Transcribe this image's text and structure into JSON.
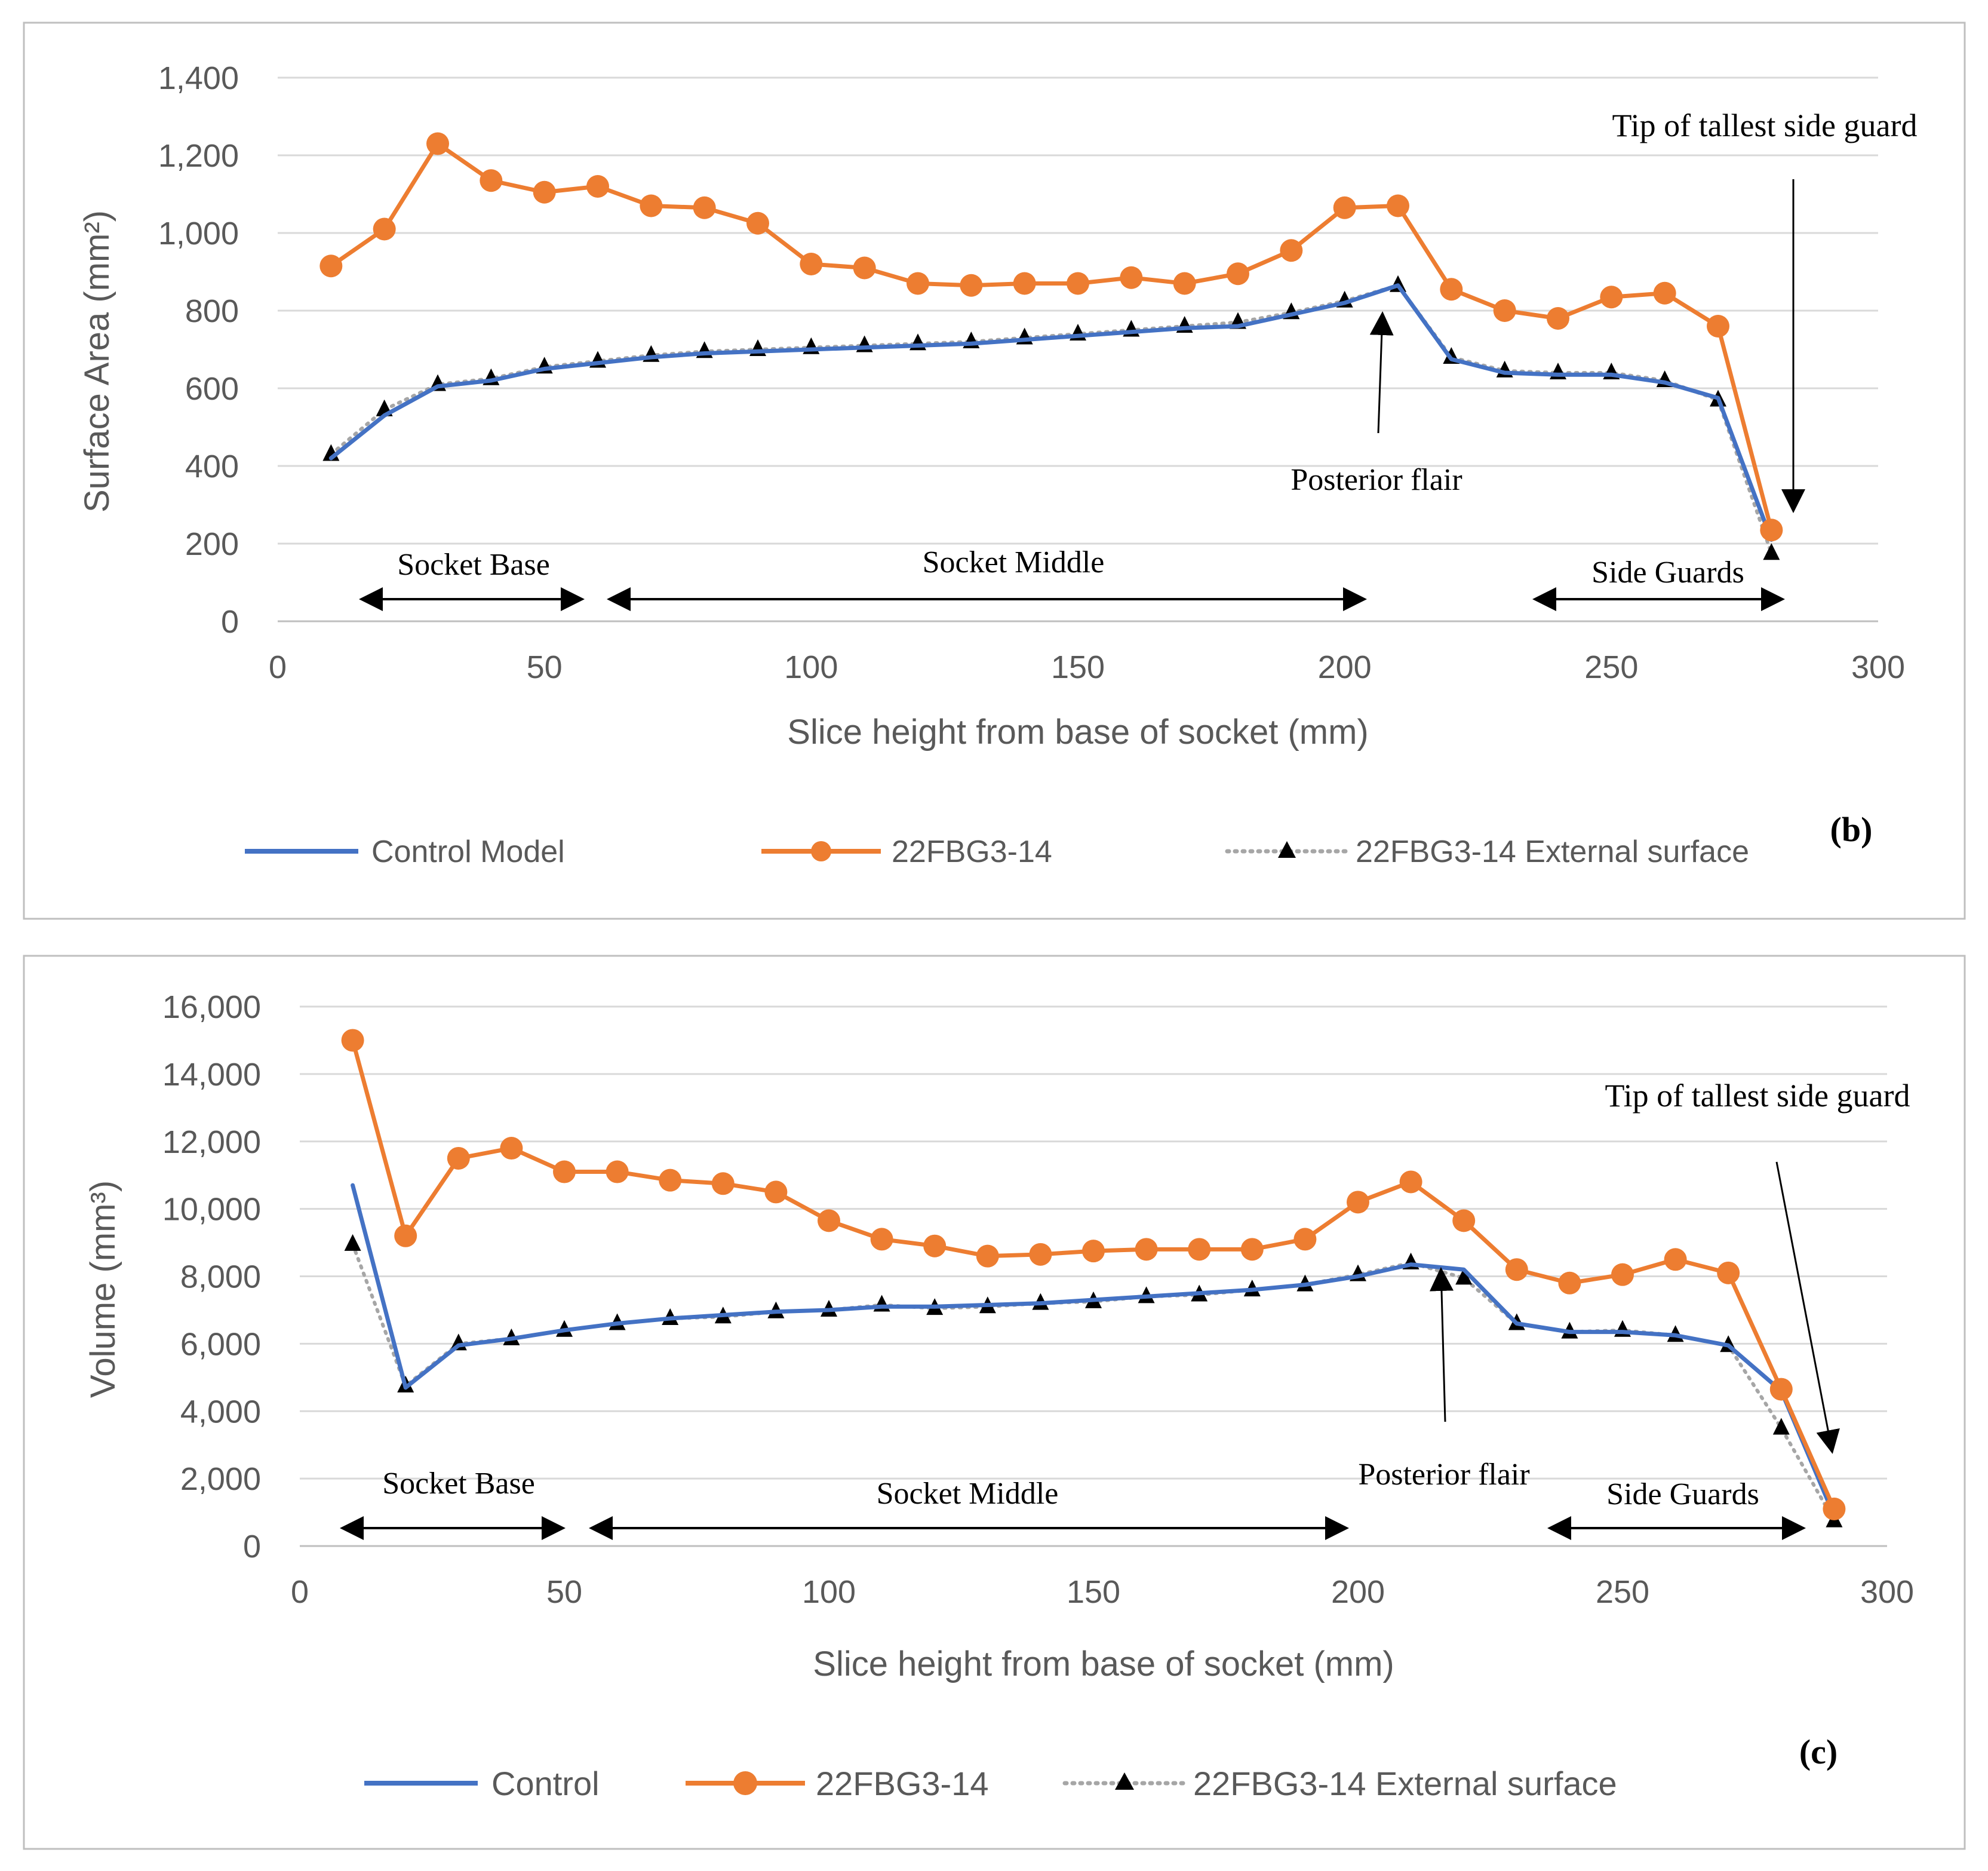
{
  "colors": {
    "control": "#4472C4",
    "fbg": "#ED7D31",
    "external": "#A6A6A6",
    "marker_external": "#000000",
    "grid": "#D9D9D9",
    "axis_text": "#595959",
    "frame": "#BFBFBF"
  },
  "chart_data": [
    {
      "type": "line",
      "panel_label": "(b)",
      "xlabel": "Slice height from base of socket (mm)",
      "ylabel": "Surface Area (mm²)",
      "xlim": [
        0,
        300
      ],
      "ylim": [
        0,
        1400
      ],
      "xticks": [
        0,
        50,
        100,
        150,
        200,
        250,
        300
      ],
      "yticks": [
        0,
        200,
        400,
        600,
        800,
        1000,
        1200,
        1400
      ],
      "xtick_labels": [
        "0",
        "50",
        "100",
        "150",
        "200",
        "250",
        "300"
      ],
      "ytick_labels": [
        "0",
        "200",
        "400",
        "600",
        "800",
        "1,000",
        "1,200",
        "1,400"
      ],
      "grid": true,
      "legend_position": "bottom",
      "x": [
        10,
        20,
        30,
        40,
        50,
        60,
        70,
        80,
        90,
        100,
        110,
        120,
        130,
        140,
        150,
        160,
        170,
        180,
        190,
        200,
        210,
        220,
        230,
        240,
        250,
        260,
        270,
        280
      ],
      "series": [
        {
          "name": "Control Model",
          "style": "solid",
          "marker": "none",
          "values": [
            420,
            530,
            605,
            620,
            650,
            665,
            680,
            690,
            695,
            700,
            705,
            710,
            715,
            725,
            735,
            745,
            755,
            760,
            790,
            820,
            865,
            675,
            640,
            635,
            635,
            615,
            575,
            210
          ]
        },
        {
          "name": "22FBG3-14",
          "style": "solid",
          "marker": "circle",
          "values": [
            915,
            1010,
            1230,
            1135,
            1105,
            1120,
            1070,
            1065,
            1025,
            920,
            910,
            870,
            865,
            870,
            870,
            885,
            870,
            895,
            955,
            1065,
            1070,
            855,
            800,
            780,
            835,
            845,
            760,
            235
          ]
        },
        {
          "name": "22FBG3-14 External surface",
          "style": "dotted",
          "marker": "triangle",
          "values": [
            430,
            545,
            610,
            625,
            655,
            670,
            685,
            695,
            700,
            705,
            710,
            715,
            720,
            730,
            740,
            750,
            760,
            770,
            795,
            825,
            865,
            680,
            645,
            640,
            640,
            620,
            570,
            175
          ]
        }
      ],
      "annotations": [
        {
          "text": "Tip of tallest side guard",
          "type": "label"
        },
        {
          "text": "Posterior flair",
          "type": "label"
        },
        {
          "text": "Socket Base",
          "type": "range",
          "from": 17,
          "to": 57
        },
        {
          "text": "Socket Middle",
          "type": "range",
          "from": 63,
          "to": 204
        },
        {
          "text": "Side Guards",
          "type": "range",
          "from": 237,
          "to": 280
        }
      ]
    },
    {
      "type": "line",
      "panel_label": "(c)",
      "xlabel": "Slice height from base of socket (mm)",
      "ylabel": "Volume (mm³)",
      "xlim": [
        0,
        300
      ],
      "ylim": [
        0,
        16000
      ],
      "xticks": [
        0,
        50,
        100,
        150,
        200,
        250,
        300
      ],
      "yticks": [
        0,
        2000,
        4000,
        6000,
        8000,
        10000,
        12000,
        14000,
        16000
      ],
      "xtick_labels": [
        "0",
        "50",
        "100",
        "150",
        "200",
        "250",
        "300"
      ],
      "ytick_labels": [
        "0",
        "2,000",
        "4,000",
        "6,000",
        "8,000",
        "10,000",
        "12,000",
        "14,000",
        "16,000"
      ],
      "grid": true,
      "legend_position": "bottom",
      "x": [
        10,
        20,
        30,
        40,
        50,
        60,
        70,
        80,
        90,
        100,
        110,
        120,
        130,
        140,
        150,
        160,
        170,
        180,
        190,
        200,
        210,
        220,
        230,
        240,
        250,
        260,
        270,
        280,
        290
      ],
      "series": [
        {
          "name": "Control",
          "style": "solid",
          "marker": "none",
          "values": [
            10700,
            4700,
            5950,
            6150,
            6400,
            6600,
            6750,
            6850,
            6950,
            7000,
            7100,
            7100,
            7150,
            7200,
            7300,
            7400,
            7500,
            7600,
            7750,
            8000,
            8350,
            8200,
            6600,
            6350,
            6350,
            6250,
            5950,
            4600,
            900
          ]
        },
        {
          "name": "22FBG3-14",
          "style": "solid",
          "marker": "circle",
          "values": [
            15000,
            9200,
            11500,
            11800,
            11100,
            11100,
            10850,
            10750,
            10500,
            9650,
            9100,
            8900,
            8600,
            8650,
            8750,
            8800,
            8800,
            8800,
            9100,
            10200,
            10800,
            9650,
            8200,
            7800,
            8050,
            8500,
            8100,
            4650,
            1100
          ]
        },
        {
          "name": "22FBG3-14 External surface",
          "style": "dotted",
          "marker": "triangle",
          "values": [
            8950,
            4750,
            6000,
            6150,
            6400,
            6600,
            6750,
            6800,
            6950,
            7000,
            7150,
            7050,
            7100,
            7200,
            7250,
            7400,
            7450,
            7600,
            7750,
            8050,
            8400,
            7950,
            6600,
            6350,
            6400,
            6250,
            5950,
            3500,
            750
          ]
        }
      ],
      "annotations": [
        {
          "text": "Tip of tallest side guard",
          "type": "label"
        },
        {
          "text": "Posterior flair",
          "type": "label"
        },
        {
          "text": "Socket Base",
          "type": "range",
          "from": 9,
          "to": 50
        },
        {
          "text": "Socket Middle",
          "type": "range",
          "from": 56,
          "to": 198
        },
        {
          "text": "Side Guards",
          "type": "range",
          "from": 237,
          "to": 283
        }
      ]
    }
  ]
}
